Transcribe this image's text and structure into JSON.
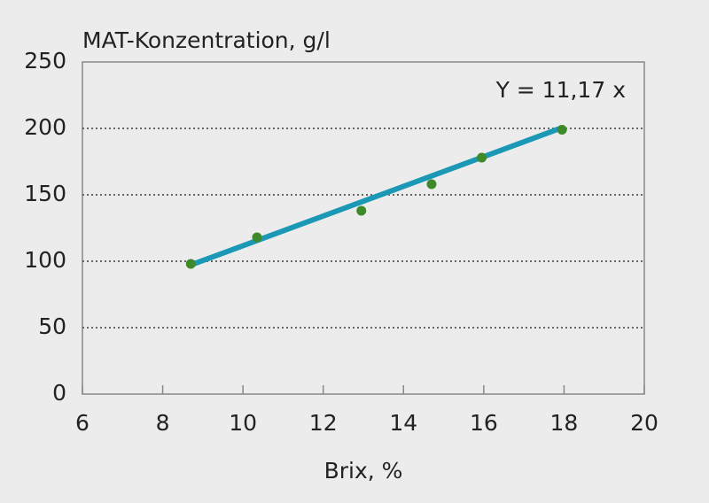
{
  "chart_data": {
    "type": "scatter",
    "title": "MAT-Konzentration, g/l",
    "x_label": "Brix, %",
    "annotation": "Y = 11,17 x",
    "trendline_slope": 11.17,
    "x": [
      8.7,
      10.35,
      12.95,
      14.7,
      15.95,
      17.95
    ],
    "values": [
      98,
      118,
      138,
      158,
      178,
      199
    ],
    "color": "#3e8a2b",
    "trendline_color": "#1a98b5",
    "xlim": [
      6,
      20
    ],
    "xticks": [
      6,
      8,
      10,
      12,
      14,
      16,
      18,
      20
    ],
    "ylim": [
      0,
      250
    ],
    "yticks": [
      0,
      50,
      100,
      150,
      200,
      250
    ],
    "grid": true
  }
}
